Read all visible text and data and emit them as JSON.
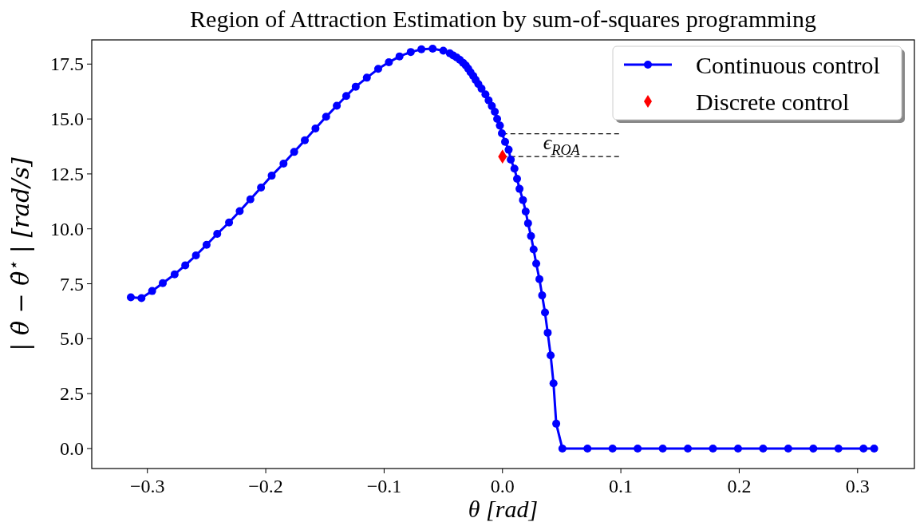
{
  "chart_data": {
    "type": "line",
    "title": "Region of Attraction Estimation by sum-of-squares programming",
    "xlabel": "θ [rad]",
    "ylabel": "| θ̇ − θ̇$^{⋆}$ | [rad/s]",
    "xlim": [
      -0.347,
      0.348
    ],
    "ylim": [
      -0.91,
      18.6
    ],
    "xticks": [
      {
        "value": -0.3,
        "label": "−0.3"
      },
      {
        "value": -0.2,
        "label": "−0.2"
      },
      {
        "value": -0.1,
        "label": "−0.1"
      },
      {
        "value": 0,
        "label": "0.0"
      },
      0.1,
      0.2,
      0.3
    ],
    "yticks": [
      {
        "value": 0,
        "label": "0.0"
      },
      2.5,
      {
        "value": 5,
        "label": "5.0"
      },
      7.5,
      {
        "value": 10,
        "label": "10.0"
      },
      12.5,
      {
        "value": 15,
        "label": "15.0"
      },
      17.5
    ],
    "grid": false,
    "legend": "top right",
    "series": [
      {
        "name": "Continuous control",
        "color": "#0000ff",
        "marker": "circle",
        "line_style": "solid",
        "x": [
          -0.314,
          -0.305,
          -0.296,
          -0.287,
          -0.277,
          -0.268,
          -0.259,
          -0.25,
          -0.241,
          -0.231,
          -0.222,
          -0.213,
          -0.204,
          -0.195,
          -0.185,
          -0.176,
          -0.167,
          -0.158,
          -0.149,
          -0.14,
          -0.132,
          -0.124,
          -0.1146,
          -0.105,
          -0.096,
          -0.087,
          -0.0775,
          -0.0685,
          -0.059,
          -0.05,
          -0.0445,
          -0.0416,
          -0.0387,
          -0.036,
          -0.0333,
          -0.031,
          -0.029,
          -0.027,
          -0.0247,
          -0.0227,
          -0.0204,
          -0.0177,
          -0.0144,
          -0.0117,
          -0.009,
          -0.0065,
          -0.0045,
          -0.0022,
          -0.0005,
          0.0022,
          0.0052,
          0.007,
          0.0101,
          0.0123,
          0.0144,
          0.0173,
          0.0196,
          0.0216,
          0.0241,
          0.0263,
          0.0285,
          0.0312,
          0.0335,
          0.0359,
          0.0382,
          0.0407,
          0.0431,
          0.0454,
          0.0506,
          0.0718,
          0.093,
          0.1142,
          0.1354,
          0.1566,
          0.1778,
          0.199,
          0.2202,
          0.2414,
          0.2626,
          0.2838,
          0.305,
          0.314
        ],
        "values": [
          6.88,
          6.85,
          7.17,
          7.53,
          7.93,
          8.34,
          8.79,
          9.27,
          9.77,
          10.29,
          10.81,
          11.34,
          11.88,
          12.42,
          12.97,
          13.5,
          14.03,
          14.57,
          15.1,
          15.6,
          16.05,
          16.47,
          16.88,
          17.28,
          17.58,
          17.85,
          18.05,
          18.17,
          18.2,
          18.11,
          17.99,
          17.89,
          17.8,
          17.69,
          17.56,
          17.44,
          17.29,
          17.13,
          16.96,
          16.78,
          16.59,
          16.38,
          16.12,
          15.85,
          15.59,
          15.33,
          15.0,
          14.7,
          14.35,
          13.96,
          13.6,
          13.15,
          12.74,
          12.28,
          11.82,
          11.31,
          10.79,
          10.25,
          9.67,
          9.06,
          8.42,
          7.71,
          6.97,
          6.19,
          5.27,
          4.24,
          2.97,
          1.13,
          0,
          0,
          0,
          0,
          0,
          0,
          0,
          0,
          0,
          0,
          0,
          0,
          0,
          0
        ]
      },
      {
        "name": "Discrete control",
        "type": "scatter",
        "color": "#ff0000",
        "marker": "diamond",
        "x": [
          0.0
        ],
        "values": [
          13.29
        ]
      }
    ],
    "ref_lines": [
      {
        "axis": "y",
        "value": 14.33,
        "color": "#000000",
        "line_style": "dashed"
      },
      {
        "axis": "y",
        "value": 13.29,
        "color": "#000000",
        "line_style": "dashed"
      }
    ],
    "annotations": [
      "ϵ$_{ROA}$"
    ]
  }
}
